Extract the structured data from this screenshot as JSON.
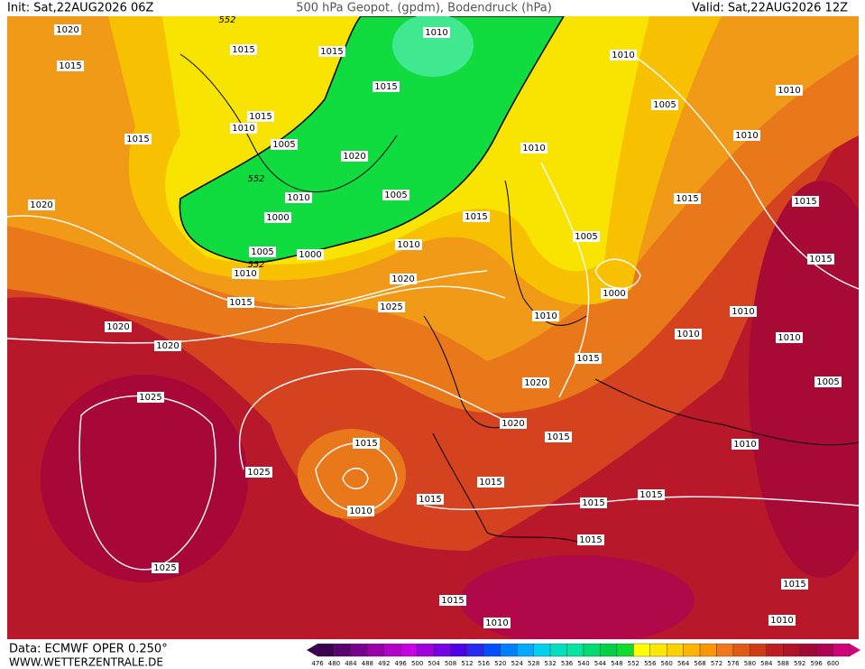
{
  "header": {
    "init": "Init: Sat,22AUG2026 06Z",
    "title": "500 hPa Geopot. (gpdm), Bodendruck (hPa)",
    "valid": "Valid: Sat,22AUG2026 12Z"
  },
  "isobar_labels": [
    "1020",
    "1015",
    "552",
    "1015",
    "1015",
    "1010",
    "1010",
    "1015",
    "1015",
    "1010",
    "1015",
    "1005",
    "1020",
    "1005",
    "1010",
    "1010",
    "1010",
    "552",
    "1010",
    "1005",
    "1015",
    "1015",
    "1020",
    "1000",
    "1015",
    "1005",
    "1010",
    "1005",
    "1000",
    "552",
    "1010",
    "1015",
    "1000",
    "1020",
    "1015",
    "1025",
    "1010",
    "1010",
    "1020",
    "1010",
    "1010",
    "1020",
    "1015",
    "1020",
    "1005",
    "1025",
    "1020",
    "1015",
    "1010",
    "1015",
    "1025",
    "1015",
    "1015",
    "1015",
    "1015",
    "1010",
    "1015",
    "1025",
    "1015",
    "1010",
    "1015",
    "1010"
  ],
  "colorbar": {
    "labels": [
      476,
      480,
      484,
      488,
      492,
      496,
      500,
      504,
      508,
      512,
      516,
      520,
      524,
      528,
      532,
      536,
      540,
      544,
      548,
      552,
      556,
      560,
      564,
      568,
      572,
      576,
      580,
      584,
      588,
      592,
      596,
      600
    ],
    "colors": [
      "#3c0050",
      "#5a0070",
      "#7a0090",
      "#9900aa",
      "#b400c8",
      "#c800e6",
      "#a000e0",
      "#7800e6",
      "#5000e6",
      "#2828f0",
      "#0050ff",
      "#0080ff",
      "#00aaff",
      "#00d0f0",
      "#00e0c0",
      "#00e6a0",
      "#00dc6e",
      "#00d246",
      "#10dc30",
      "#ffff00",
      "#ffe600",
      "#ffd000",
      "#ffb400",
      "#ff9600",
      "#f07818",
      "#e05a14",
      "#d03c14",
      "#c01e1e",
      "#b01428",
      "#a00a32",
      "#b00050",
      "#d00078"
    ]
  },
  "footer": {
    "data_source": "Data: ECMWF OPER 0.250°",
    "website": "WWW.WETTERZENTRALE.DE"
  }
}
